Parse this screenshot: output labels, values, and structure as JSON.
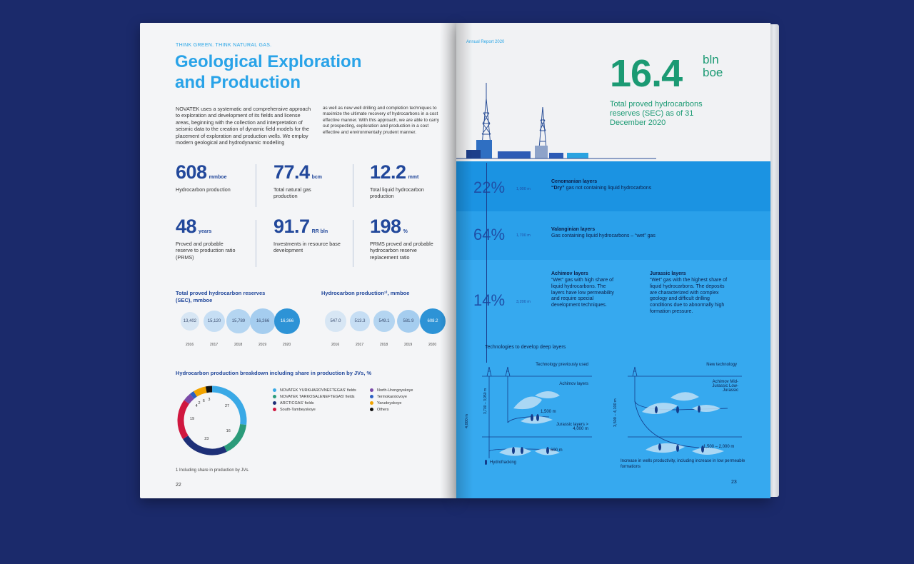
{
  "left": {
    "kicker": "THINK GREEN. THINK NATURAL GAS.",
    "title_line1": "Geological Exploration",
    "title_line2": "and Production",
    "body_col1": "NOVATEK uses a systematic and comprehensive approach to exploration and development of its fields and license areas, beginning with the collection and interpretation of seismic data to the creation of dynamic field models for the placement of exploration and production wells. We employ modern geological and hydrodynamic modelling",
    "body_col2": "as well as new well drilling and completion techniques to maximize the ultimate recovery of hydrocarbons in a cost effective manner. With this approach, we are able to carry out prospecting, exploration and production in a cost effective and environmentally prudent manner.",
    "stats": [
      {
        "num": "608",
        "unit": "mmboe",
        "label": "Hydrocarbon production"
      },
      {
        "num": "77.4",
        "unit": "bcm",
        "label": "Total natural gas production"
      },
      {
        "num": "12.2",
        "unit": "mmt",
        "label": "Total liquid hydrocarbon production"
      },
      {
        "num": "48",
        "unit": "years",
        "label": "Proved and probable reserve to production ratio (PRMS)"
      },
      {
        "num": "91.7",
        "unit": "RR bln",
        "label": "Investments in resource base development"
      },
      {
        "num": "198",
        "unit": "%",
        "label": "PRMS proved and probable hydrocarbon reserve replacement ratio"
      }
    ],
    "reserves_title": "Total proved hydrocarbon reserves (SEC), mmboe",
    "production_title": "Hydrocarbon production¹⁾, mmboe",
    "breakdown_title": "Hydrocarbon production breakdown including share in production by JVs, %",
    "footnote": "1   Including share in production by JVs.",
    "page_number": "22"
  },
  "chart_data": [
    {
      "type": "bubble",
      "title": "Total proved hydrocarbon reserves (SEC), mmboe",
      "categories": [
        "2016",
        "2017",
        "2018",
        "2019",
        "2020"
      ],
      "values": [
        13402,
        15120,
        15789,
        16266,
        16366
      ],
      "labels": [
        "13,402",
        "15,120",
        "15,789",
        "16,266",
        "16,366"
      ],
      "colors": [
        "#d7e6f4",
        "#c6def4",
        "#b4d5f1",
        "#a5cdef",
        "#2d93d6"
      ]
    },
    {
      "type": "bubble",
      "title": "Hydrocarbon production¹⁾, mmboe",
      "categories": [
        "2016",
        "2017",
        "2018",
        "2019",
        "2020"
      ],
      "values": [
        547.0,
        513.3,
        549.1,
        581.9,
        608.2
      ],
      "labels": [
        "547.0",
        "513.3",
        "549.1",
        "581.9",
        "608.2"
      ],
      "colors": [
        "#d7e6f4",
        "#c6def4",
        "#b4d5f1",
        "#a5cdef",
        "#2d93d6"
      ]
    },
    {
      "type": "pie",
      "title": "Hydrocarbon production breakdown including share in production by JVs, %",
      "values": [
        27,
        16,
        23,
        19,
        4,
        2,
        6,
        3
      ],
      "colors": [
        "#3aa9e6",
        "#2b9b7a",
        "#1d2f77",
        "#d0173f",
        "#7a4aa7",
        "#2b5fc3",
        "#f2a400",
        "#111111"
      ],
      "legend": [
        "NOVATEK YURKHAROVNEFTEGAS' fields",
        "NOVATEK TARKOSALENEFTEGAS' fields",
        "ARCTICGAS' fields",
        "South-Tambeyskoye",
        "North-Urengoyskoye",
        "Termokarstovoye",
        "Yarudeyskoye",
        "Others"
      ]
    }
  ],
  "right": {
    "kicker": "Annual Report 2020",
    "big_number": "16.4",
    "big_unit_1": "bln",
    "big_unit_2": "boe",
    "big_caption": "Total proved hydrocarbons reserves (SEC) as of 31 December 2020",
    "layers": [
      {
        "pct": "22%",
        "depth": "1,000 m",
        "name": "Cenomanian layers",
        "text_bold": "“Dry”",
        "text": " gas not containing liquid hydrocarbons"
      },
      {
        "pct": "64%",
        "depth": "1,700 m",
        "name": "Valanginian layers",
        "text": "Gas containing liquid hydrocarbons – “wet” gas"
      },
      {
        "pct": "14%",
        "depth": "3,200 m",
        "name": "Achimov layers",
        "text": "“Wet” gas with high share of liquid hydrocarbons. The layers have low permeability and require special development techniques."
      }
    ],
    "jurassic_name": "Jurassic layers",
    "jurassic_text": "“Wet” gas with the highest share of liquid hydrocarbons. The deposits are characterized with complex geology and difficult drilling conditions due to abnormally high formation pressure.",
    "tech_title": "Technologies to develop deep layers",
    "tech_prev": "Technology previously used",
    "tech_new": "New technology",
    "achimov_label": "Achimov layers",
    "jurassic_label": "Jurassic layers > 4,000 m",
    "dim_1500": "1,500 m",
    "dim_600": "600 m",
    "dim_4000": "4,000 m",
    "dim_3700": "3,700 – 3,950 m",
    "dim_3500": "3,500 – 4,100 m",
    "dim_1500_2000": "1,500 – 2,000 m",
    "new_layers": "Achimov Mid-Jurassic Low-Jurassic",
    "hydrofracking": "Hydrofracking",
    "productivity": "Increase in wells productivity, including increase in low permeable formations",
    "page_number": "23"
  }
}
